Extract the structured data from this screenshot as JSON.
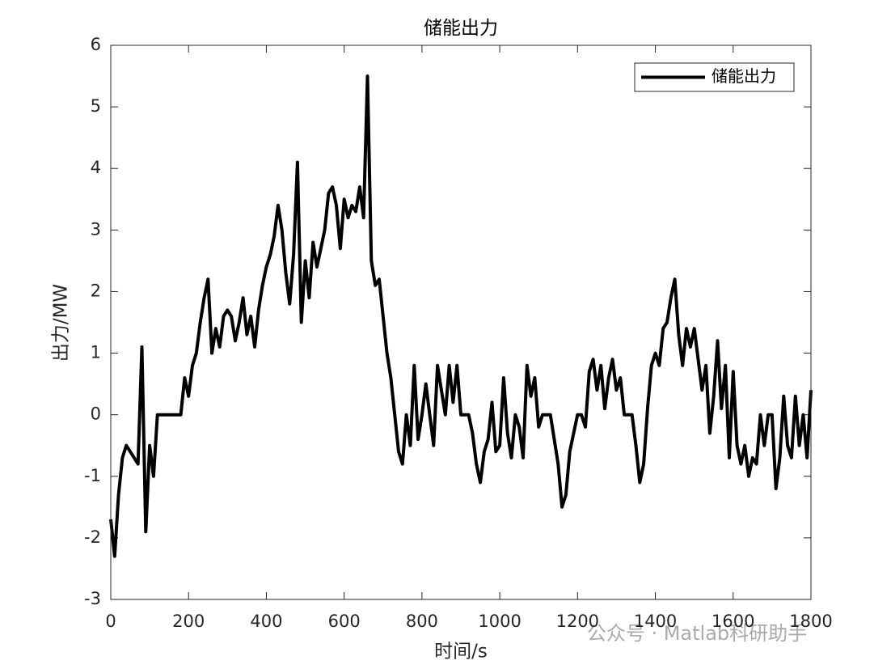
{
  "chart_data": {
    "type": "line",
    "title": "储能出力",
    "xlabel": "时间/s",
    "ylabel": "出力/MW",
    "watermark": "公众号 · Matlab科研助手",
    "legend": "northeast",
    "x": [
      0,
      10,
      20,
      30,
      40,
      50,
      60,
      70,
      80,
      90,
      100,
      110,
      120,
      130,
      140,
      150,
      160,
      170,
      180,
      190,
      200,
      210,
      220,
      230,
      240,
      250,
      260,
      270,
      280,
      290,
      300,
      310,
      320,
      330,
      340,
      350,
      360,
      370,
      380,
      390,
      400,
      410,
      420,
      430,
      440,
      450,
      460,
      470,
      480,
      490,
      500,
      510,
      520,
      530,
      540,
      550,
      560,
      570,
      580,
      590,
      600,
      610,
      620,
      630,
      640,
      650,
      660,
      670,
      680,
      690,
      700,
      710,
      720,
      730,
      740,
      750,
      760,
      770,
      780,
      790,
      800,
      810,
      820,
      830,
      840,
      850,
      860,
      870,
      880,
      890,
      900,
      910,
      920,
      930,
      940,
      950,
      960,
      970,
      980,
      990,
      1000,
      1010,
      1020,
      1030,
      1040,
      1050,
      1060,
      1070,
      1080,
      1090,
      1100,
      1110,
      1120,
      1130,
      1140,
      1150,
      1160,
      1170,
      1180,
      1190,
      1200,
      1210,
      1220,
      1230,
      1240,
      1250,
      1260,
      1270,
      1280,
      1290,
      1300,
      1310,
      1320,
      1330,
      1340,
      1350,
      1360,
      1370,
      1380,
      1390,
      1400,
      1410,
      1420,
      1430,
      1440,
      1450,
      1460,
      1470,
      1480,
      1490,
      1500,
      1510,
      1520,
      1530,
      1540,
      1550,
      1560,
      1570,
      1580,
      1590,
      1600,
      1610,
      1620,
      1630,
      1640,
      1650,
      1660,
      1670,
      1680,
      1690,
      1700,
      1710,
      1720,
      1730,
      1740,
      1750,
      1760,
      1770,
      1780,
      1790,
      1800
    ],
    "series": [
      {
        "name": "储能出力",
        "color": "#000000",
        "values": [
          -1.7,
          -2.3,
          -1.3,
          -0.7,
          -0.5,
          -0.6,
          -0.7,
          -0.8,
          1.1,
          -1.9,
          -0.5,
          -1.0,
          0,
          0,
          0,
          0,
          0,
          0,
          0,
          0.6,
          0.3,
          0.8,
          1.0,
          1.5,
          1.9,
          2.2,
          1.0,
          1.4,
          1.1,
          1.6,
          1.7,
          1.6,
          1.2,
          1.5,
          1.9,
          1.3,
          1.6,
          1.1,
          1.7,
          2.1,
          2.4,
          2.6,
          2.9,
          3.4,
          3.0,
          2.3,
          1.8,
          2.6,
          4.1,
          1.5,
          2.5,
          1.9,
          2.8,
          2.4,
          2.7,
          3.0,
          3.6,
          3.7,
          3.4,
          2.7,
          3.5,
          3.2,
          3.4,
          3.3,
          3.7,
          3.2,
          5.5,
          2.5,
          2.1,
          2.2,
          1.6,
          1.0,
          0.6,
          0,
          -0.6,
          -0.8,
          0,
          -0.5,
          0.8,
          -0.4,
          0,
          0.5,
          0,
          -0.5,
          0.8,
          0.4,
          0,
          0.8,
          0.2,
          0.8,
          0,
          0,
          0,
          -0.3,
          -0.8,
          -1.1,
          -0.6,
          -0.4,
          0.2,
          -0.6,
          -0.5,
          0.6,
          -0.3,
          -0.7,
          0,
          -0.2,
          -0.7,
          0.8,
          0.3,
          0.6,
          -0.2,
          0,
          0,
          0,
          -0.4,
          -0.8,
          -1.5,
          -1.3,
          -0.6,
          -0.3,
          0,
          0,
          -0.2,
          0.7,
          0.9,
          0.4,
          0.8,
          0.1,
          0.6,
          0.9,
          0.4,
          0.6,
          0,
          0,
          0,
          -0.5,
          -1.1,
          -0.8,
          0.1,
          0.8,
          1.0,
          0.8,
          1.4,
          1.5,
          1.9,
          2.2,
          1.3,
          0.8,
          1.4,
          1.1,
          1.4,
          0.9,
          0.4,
          0.8,
          -0.3,
          0.3,
          1.2,
          0.1,
          0.8,
          -0.7,
          0.7,
          -0.5,
          -0.8,
          -0.5,
          -1.0,
          -0.7,
          -0.8,
          0,
          -0.5,
          0,
          0,
          -1.2,
          -0.7,
          0.3,
          -0.5,
          -0.7,
          0.3,
          -0.5,
          0,
          -0.7,
          0.4
        ]
      }
    ],
    "xlim": [
      0,
      1800
    ],
    "xticks": [
      0,
      200,
      400,
      600,
      800,
      1000,
      1200,
      1400,
      1600,
      1800
    ],
    "ylim": [
      -3,
      6
    ],
    "yticks": [
      -3,
      -2,
      -1,
      0,
      1,
      2,
      3,
      4,
      5,
      6
    ]
  }
}
